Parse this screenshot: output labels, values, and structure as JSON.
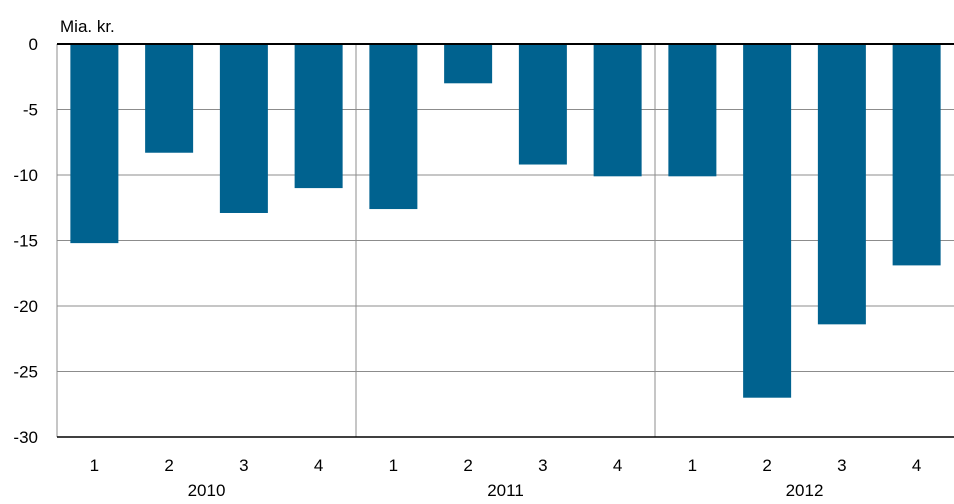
{
  "chart_data": {
    "type": "bar",
    "ylabel": "Mia. kr.",
    "ylim": [
      -30,
      0
    ],
    "yticks": [
      0,
      -5,
      -10,
      -15,
      -20,
      -25,
      -30
    ],
    "ytick_labels": [
      "0",
      "-5",
      "-10",
      "-15",
      "-20",
      "-25",
      "-30"
    ],
    "grid": true,
    "categories": [
      "1",
      "2",
      "3",
      "4",
      "1",
      "2",
      "3",
      "4",
      "1",
      "2",
      "3",
      "4"
    ],
    "groups": [
      {
        "label": "2010",
        "start": 0,
        "count": 4
      },
      {
        "label": "2011",
        "start": 4,
        "count": 4
      },
      {
        "label": "2012",
        "start": 8,
        "count": 4
      }
    ],
    "values": [
      -15.2,
      -8.3,
      -12.9,
      -11.0,
      -12.6,
      -3.0,
      -9.2,
      -10.1,
      -10.1,
      -27.0,
      -21.4,
      -16.9
    ],
    "bar_color": "#00628f"
  }
}
